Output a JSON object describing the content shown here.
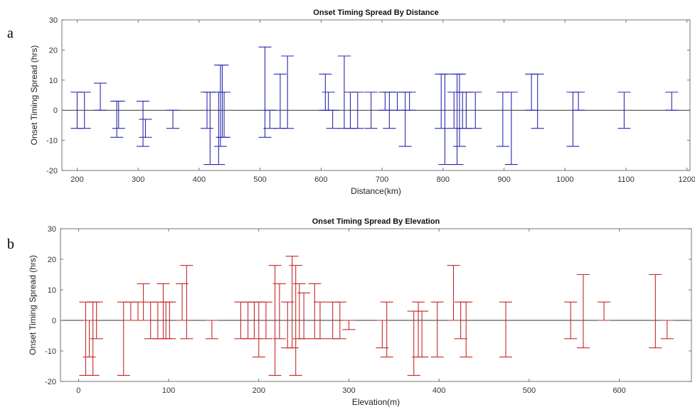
{
  "panel_letters": [
    "a",
    "b"
  ],
  "chart_data": [
    {
      "type": "errorbar",
      "title": "Onset Timing Spread By Distance",
      "xlabel": "Distance(km)",
      "ylabel": "Onset Timing Spread (hrs)",
      "xlim": [
        175,
        1205
      ],
      "ylim": [
        -20,
        30
      ],
      "xticks": [
        200,
        300,
        400,
        500,
        600,
        700,
        800,
        900,
        1000,
        1100,
        1200
      ],
      "yticks": [
        -20,
        -10,
        0,
        10,
        20,
        30
      ],
      "color": "#2a2ab0",
      "zero_line": true,
      "bars": [
        {
          "x": 200,
          "low": -6,
          "high": 6
        },
        {
          "x": 212,
          "low": -6,
          "high": 6
        },
        {
          "x": 238,
          "low": 0,
          "high": 9
        },
        {
          "x": 265,
          "low": -9,
          "high": 3
        },
        {
          "x": 268,
          "low": -6,
          "high": 3
        },
        {
          "x": 308,
          "low": -12,
          "high": 3
        },
        {
          "x": 312,
          "low": -9,
          "high": -3
        },
        {
          "x": 357,
          "low": -6,
          "high": 0
        },
        {
          "x": 413,
          "low": -6,
          "high": 6
        },
        {
          "x": 418,
          "low": -18,
          "high": 6
        },
        {
          "x": 432,
          "low": -18,
          "high": 6
        },
        {
          "x": 435,
          "low": -12,
          "high": 15
        },
        {
          "x": 438,
          "low": -9,
          "high": 15
        },
        {
          "x": 441,
          "low": -9,
          "high": 6
        },
        {
          "x": 508,
          "low": -9,
          "high": 21
        },
        {
          "x": 516,
          "low": -6,
          "high": 0
        },
        {
          "x": 533,
          "low": -6,
          "high": 12
        },
        {
          "x": 545,
          "low": -6,
          "high": 18
        },
        {
          "x": 607,
          "low": 0,
          "high": 12
        },
        {
          "x": 612,
          "low": 0,
          "high": 6
        },
        {
          "x": 619,
          "low": -6,
          "high": 0
        },
        {
          "x": 638,
          "low": -6,
          "high": 18
        },
        {
          "x": 648,
          "low": -6,
          "high": 6
        },
        {
          "x": 660,
          "low": -6,
          "high": 6
        },
        {
          "x": 682,
          "low": -6,
          "high": 6
        },
        {
          "x": 705,
          "low": 0,
          "high": 6
        },
        {
          "x": 712,
          "low": -6,
          "high": 6
        },
        {
          "x": 725,
          "low": 0,
          "high": 6
        },
        {
          "x": 738,
          "low": -12,
          "high": 6
        },
        {
          "x": 745,
          "low": 0,
          "high": 6
        },
        {
          "x": 797,
          "low": -6,
          "high": 12
        },
        {
          "x": 803,
          "low": -18,
          "high": 12
        },
        {
          "x": 818,
          "low": -6,
          "high": 6
        },
        {
          "x": 823,
          "low": -18,
          "high": 12
        },
        {
          "x": 827,
          "low": -12,
          "high": 12
        },
        {
          "x": 832,
          "low": -6,
          "high": 6
        },
        {
          "x": 838,
          "low": -6,
          "high": 6
        },
        {
          "x": 853,
          "low": -6,
          "high": 6
        },
        {
          "x": 898,
          "low": -12,
          "high": 6
        },
        {
          "x": 912,
          "low": -18,
          "high": 6
        },
        {
          "x": 945,
          "low": 0,
          "high": 12
        },
        {
          "x": 955,
          "low": -6,
          "high": 12
        },
        {
          "x": 1013,
          "low": -12,
          "high": 6
        },
        {
          "x": 1022,
          "low": 0,
          "high": 6
        },
        {
          "x": 1097,
          "low": -6,
          "high": 6
        },
        {
          "x": 1175,
          "low": 0,
          "high": 6
        }
      ]
    },
    {
      "type": "errorbar",
      "title": "Onset Timing Spread By Elevation",
      "xlabel": "Elevation(m)",
      "ylabel": "Onset Timing Spread (hrs)",
      "xlim": [
        -20,
        680
      ],
      "ylim": [
        -20,
        30
      ],
      "xticks": [
        0,
        100,
        200,
        300,
        400,
        500,
        600
      ],
      "yticks": [
        -20,
        -10,
        0,
        10,
        20,
        30
      ],
      "color": "#c42a2a",
      "zero_line": true,
      "bars": [
        {
          "x": 8,
          "low": -18,
          "high": 6
        },
        {
          "x": 12,
          "low": -12,
          "high": 0
        },
        {
          "x": 16,
          "low": -18,
          "high": 6
        },
        {
          "x": 20,
          "low": -6,
          "high": 6
        },
        {
          "x": 50,
          "low": -18,
          "high": 6
        },
        {
          "x": 58,
          "low": 0,
          "high": 6
        },
        {
          "x": 66,
          "low": 0,
          "high": 6
        },
        {
          "x": 72,
          "low": 0,
          "high": 12
        },
        {
          "x": 80,
          "low": -6,
          "high": 6
        },
        {
          "x": 88,
          "low": -6,
          "high": 6
        },
        {
          "x": 94,
          "low": -6,
          "high": 12
        },
        {
          "x": 97,
          "low": -6,
          "high": 6
        },
        {
          "x": 101,
          "low": -6,
          "high": 6
        },
        {
          "x": 115,
          "low": 0,
          "high": 12
        },
        {
          "x": 120,
          "low": -6,
          "high": 18
        },
        {
          "x": 148,
          "low": -6,
          "high": 0
        },
        {
          "x": 180,
          "low": -6,
          "high": 6
        },
        {
          "x": 188,
          "low": -6,
          "high": 6
        },
        {
          "x": 195,
          "low": -6,
          "high": 6
        },
        {
          "x": 200,
          "low": -12,
          "high": 6
        },
        {
          "x": 208,
          "low": -6,
          "high": 6
        },
        {
          "x": 218,
          "low": -18,
          "high": 18
        },
        {
          "x": 223,
          "low": -6,
          "high": 12
        },
        {
          "x": 232,
          "low": -9,
          "high": 6
        },
        {
          "x": 237,
          "low": -9,
          "high": 21
        },
        {
          "x": 241,
          "low": -18,
          "high": 18
        },
        {
          "x": 245,
          "low": -6,
          "high": 12
        },
        {
          "x": 250,
          "low": -6,
          "high": 9
        },
        {
          "x": 262,
          "low": -6,
          "high": 12
        },
        {
          "x": 268,
          "low": -6,
          "high": 6
        },
        {
          "x": 282,
          "low": -6,
          "high": 6
        },
        {
          "x": 290,
          "low": -6,
          "high": 6
        },
        {
          "x": 300,
          "low": -3,
          "high": 0
        },
        {
          "x": 337,
          "low": -9,
          "high": 0
        },
        {
          "x": 342,
          "low": -12,
          "high": 6
        },
        {
          "x": 372,
          "low": -18,
          "high": 3
        },
        {
          "x": 377,
          "low": -12,
          "high": 6
        },
        {
          "x": 381,
          "low": -12,
          "high": 3
        },
        {
          "x": 398,
          "low": -12,
          "high": 6
        },
        {
          "x": 416,
          "low": 0,
          "high": 18
        },
        {
          "x": 424,
          "low": -6,
          "high": 6
        },
        {
          "x": 430,
          "low": -12,
          "high": 6
        },
        {
          "x": 474,
          "low": -12,
          "high": 6
        },
        {
          "x": 546,
          "low": -6,
          "high": 6
        },
        {
          "x": 560,
          "low": -9,
          "high": 15
        },
        {
          "x": 583,
          "low": 0,
          "high": 6
        },
        {
          "x": 640,
          "low": -9,
          "high": 15
        },
        {
          "x": 653,
          "low": -6,
          "high": 0
        }
      ]
    }
  ]
}
